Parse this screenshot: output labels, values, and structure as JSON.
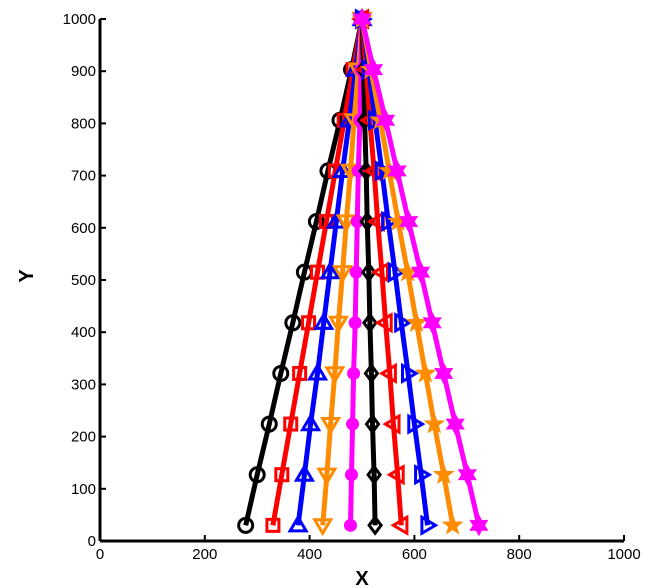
{
  "chart_data": {
    "type": "line",
    "title": "",
    "xlabel": "X",
    "ylabel": "Y",
    "xlim": [
      0,
      1000
    ],
    "ylim": [
      0,
      1000
    ],
    "xticks": [
      0,
      200,
      400,
      600,
      800,
      1000
    ],
    "yticks": [
      0,
      100,
      200,
      300,
      400,
      500,
      600,
      700,
      800,
      900,
      1000
    ],
    "grid": false,
    "legend": "none",
    "series": [
      {
        "color": "#000000",
        "marker": "circle",
        "x": [
          278,
          300,
          323,
          345,
          368,
          390,
          413,
          435,
          458,
          480,
          500
        ],
        "y": [
          30,
          127,
          224,
          321,
          418,
          515,
          612,
          709,
          806,
          903,
          1000
        ]
      },
      {
        "color": "#ff0000",
        "marker": "square",
        "x": [
          330,
          347,
          364,
          381,
          398,
          415,
          432,
          449,
          466,
          483,
          500
        ],
        "y": [
          30,
          127,
          224,
          321,
          418,
          515,
          612,
          709,
          806,
          903,
          1000
        ]
      },
      {
        "color": "#0000ff",
        "marker": "triangle-up",
        "x": [
          378,
          390,
          402,
          415,
          427,
          439,
          451,
          463,
          476,
          488,
          500
        ],
        "y": [
          30,
          127,
          224,
          321,
          418,
          515,
          612,
          709,
          806,
          903,
          1000
        ]
      },
      {
        "color": "#ff8c00",
        "marker": "triangle-down",
        "x": [
          425,
          433,
          440,
          448,
          455,
          463,
          470,
          478,
          485,
          493,
          500
        ],
        "y": [
          30,
          127,
          224,
          321,
          418,
          515,
          612,
          709,
          806,
          903,
          1000
        ]
      },
      {
        "color": "#ff00ff",
        "marker": "dot",
        "x": [
          478,
          480,
          482,
          484,
          487,
          489,
          491,
          493,
          496,
          498,
          500
        ],
        "y": [
          30,
          127,
          224,
          321,
          418,
          515,
          612,
          709,
          806,
          903,
          1000
        ]
      },
      {
        "color": "#000000",
        "marker": "diamond",
        "x": [
          525,
          523,
          520,
          518,
          515,
          513,
          510,
          508,
          505,
          503,
          500
        ],
        "y": [
          30,
          127,
          224,
          321,
          418,
          515,
          612,
          709,
          806,
          903,
          1000
        ]
      },
      {
        "color": "#ff0000",
        "marker": "triangle-left",
        "x": [
          575,
          568,
          560,
          553,
          545,
          538,
          530,
          523,
          515,
          508,
          500
        ],
        "y": [
          30,
          127,
          224,
          321,
          418,
          515,
          612,
          709,
          806,
          903,
          1000
        ]
      },
      {
        "color": "#0000ff",
        "marker": "triangle-right",
        "x": [
          625,
          613,
          600,
          588,
          575,
          563,
          550,
          538,
          525,
          513,
          500
        ],
        "y": [
          30,
          127,
          224,
          321,
          418,
          515,
          612,
          709,
          806,
          903,
          1000
        ]
      },
      {
        "color": "#ff8c00",
        "marker": "star",
        "x": [
          673,
          656,
          638,
          621,
          604,
          587,
          569,
          552,
          535,
          517,
          500
        ],
        "y": [
          30,
          127,
          224,
          321,
          418,
          515,
          612,
          709,
          806,
          903,
          1000
        ]
      },
      {
        "color": "#ff00ff",
        "marker": "hexagram",
        "x": [
          723,
          701,
          678,
          656,
          634,
          612,
          589,
          567,
          545,
          522,
          500
        ],
        "y": [
          30,
          127,
          224,
          321,
          418,
          515,
          612,
          709,
          806,
          903,
          1000
        ]
      }
    ]
  }
}
